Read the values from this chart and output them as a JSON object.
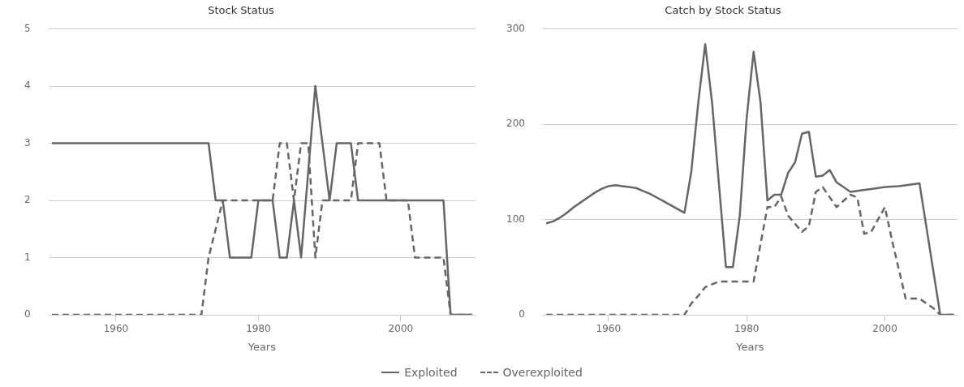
{
  "chart_data": [
    {
      "type": "line",
      "title": "Stock Status",
      "xlabel": "Years",
      "xlim": [
        1950.5,
        2010.5
      ],
      "xticks": [
        1960,
        1980,
        2000
      ],
      "ylim": [
        0,
        5
      ],
      "yticks": [
        0,
        1,
        2,
        3,
        4,
        5
      ],
      "grid": "y",
      "legend": "bottom",
      "marker": "none",
      "series": [
        {
          "name": "Exploited",
          "color": "#666666",
          "line_style": "solid",
          "x": [
            1951,
            1973,
            1974,
            1975,
            1976,
            1979,
            1980,
            1982,
            1983,
            1984,
            1985,
            1986,
            1988,
            1990,
            1991,
            1993,
            1994,
            2006,
            2007,
            2010
          ],
          "values": [
            3,
            3,
            2,
            2,
            1,
            1,
            2,
            2,
            1,
            1,
            2,
            1,
            4,
            2,
            3,
            3,
            2,
            2,
            0,
            0
          ]
        },
        {
          "name": "Overexploited",
          "color": "#666666",
          "line_style": "dashed",
          "x": [
            1951,
            1972,
            1973,
            1975,
            1982,
            1983,
            1984,
            1985,
            1986,
            1987,
            1988,
            1989,
            1993,
            1994,
            1997,
            1998,
            2001,
            2002,
            2006,
            2007,
            2010
          ],
          "values": [
            0,
            0,
            1,
            2,
            2,
            3,
            3,
            2,
            3,
            3,
            1,
            2,
            2,
            3,
            3,
            2,
            2,
            1,
            1,
            0,
            0
          ]
        }
      ]
    },
    {
      "type": "line",
      "title": "Catch by Stock Status",
      "xlabel": "Years",
      "xlim": [
        1950.5,
        2010.5
      ],
      "xticks": [
        1960,
        1980,
        2000
      ],
      "ylim": [
        0,
        300
      ],
      "yticks": [
        0,
        100,
        200,
        300
      ],
      "grid": "y",
      "legend": "bottom",
      "marker": "none",
      "series": [
        {
          "name": "Exploited",
          "color": "#666666",
          "line_style": "solid",
          "x": [
            1951,
            1952,
            1953,
            1954,
            1955,
            1956,
            1957,
            1958,
            1959,
            1960,
            1961,
            1962,
            1963,
            1964,
            1965,
            1966,
            1967,
            1968,
            1969,
            1970,
            1971,
            1972,
            1973,
            1974,
            1975,
            1977,
            1978,
            1979,
            1980,
            1981,
            1982,
            1983,
            1984,
            1985,
            1986,
            1987,
            1988,
            1989,
            1990,
            1991,
            1992,
            1993,
            1994,
            1995,
            1996,
            1998,
            2000,
            2002,
            2005,
            2008,
            2010
          ],
          "values": [
            96,
            98,
            102,
            107,
            113,
            118,
            123,
            128,
            132,
            135,
            136,
            135,
            134,
            133,
            130,
            127,
            123,
            119,
            115,
            111,
            107,
            151,
            223,
            284,
            222,
            50,
            50,
            104,
            207,
            276,
            223,
            120,
            126,
            126,
            149,
            160,
            190,
            192,
            145,
            146,
            152,
            139,
            134,
            129,
            130,
            132,
            134,
            135,
            138,
            0,
            0
          ]
        },
        {
          "name": "Overexploited",
          "color": "#666666",
          "line_style": "dashed",
          "x": [
            1951,
            1971,
            1972,
            1973,
            1974,
            1976,
            1981,
            1983,
            1984,
            1985,
            1986,
            1988,
            1989,
            1990,
            1991,
            1993,
            1995,
            1996,
            1997,
            1998,
            2000,
            2001,
            2003,
            2005,
            2007,
            2008,
            2010
          ],
          "values": [
            0,
            0,
            12,
            20,
            29,
            35,
            35,
            113,
            113,
            124,
            104,
            87,
            93,
            129,
            134,
            113,
            126,
            123,
            85,
            87,
            113,
            79,
            17,
            17,
            7,
            0,
            0
          ]
        }
      ]
    }
  ]
}
